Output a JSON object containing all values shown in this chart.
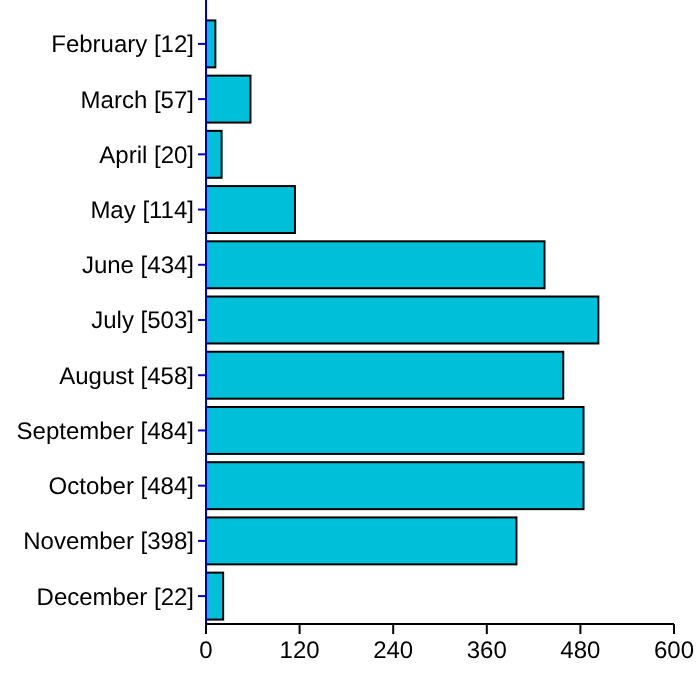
{
  "chart_data": {
    "type": "bar",
    "orientation": "horizontal",
    "categories": [
      "February [12]",
      "March [57]",
      "April [20]",
      "May [114]",
      "June [434]",
      "July [503]",
      "August [458]",
      "September [484]",
      "October [484]",
      "November [398]",
      "December [22]"
    ],
    "values": [
      12,
      57,
      20,
      114,
      434,
      503,
      458,
      484,
      484,
      398,
      22
    ],
    "color": "#00bfd8",
    "xlim": [
      0,
      600
    ],
    "xticks": [
      0,
      120,
      240,
      360,
      480,
      600
    ]
  }
}
